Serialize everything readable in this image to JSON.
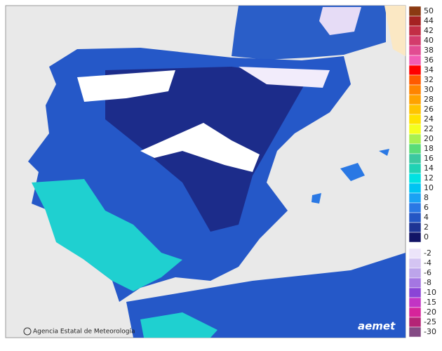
{
  "legend": {
    "upper": [
      {
        "label": 50,
        "color": "#8b3a12"
      },
      {
        "label": 44,
        "color": "#a52222"
      },
      {
        "label": 42,
        "color": "#c22e45"
      },
      {
        "label": 40,
        "color": "#d33c6c"
      },
      {
        "label": 38,
        "color": "#e24c92"
      },
      {
        "label": 36,
        "color": "#f25cb4"
      },
      {
        "label": 34,
        "color": "#ff0000"
      },
      {
        "label": 32,
        "color": "#ff5a00"
      },
      {
        "label": 30,
        "color": "#ff8400"
      },
      {
        "label": 28,
        "color": "#ffa200"
      },
      {
        "label": 26,
        "color": "#ffc400"
      },
      {
        "label": 24,
        "color": "#ffe200"
      },
      {
        "label": 22,
        "color": "#f4ff1e"
      },
      {
        "label": 20,
        "color": "#a8f050"
      },
      {
        "label": 18,
        "color": "#5adc78"
      },
      {
        "label": 16,
        "color": "#3cc8a0"
      },
      {
        "label": 14,
        "color": "#20d2b4"
      },
      {
        "label": 12,
        "color": "#00e2e2"
      },
      {
        "label": 10,
        "color": "#00c4f2"
      },
      {
        "label": 8,
        "color": "#1aa2f4"
      },
      {
        "label": 6,
        "color": "#2a78e4"
      },
      {
        "label": 4,
        "color": "#2456c4"
      },
      {
        "label": 2,
        "color": "#1e3494"
      },
      {
        "label": 0,
        "color": "#121466"
      }
    ],
    "lower": [
      {
        "label": -2,
        "color": "#ece4fa"
      },
      {
        "label": -4,
        "color": "#d4c4f2"
      },
      {
        "label": -6,
        "color": "#bca4ea"
      },
      {
        "label": -8,
        "color": "#a476e2"
      },
      {
        "label": -10,
        "color": "#8a44d6"
      },
      {
        "label": -15,
        "color": "#c234c4"
      },
      {
        "label": -20,
        "color": "#d6249a"
      },
      {
        "label": -25,
        "color": "#b42476"
      },
      {
        "label": -30,
        "color": "#844a84"
      }
    ]
  },
  "attribution": "Agencia Estatal de Meteorología",
  "logo": "aemet"
}
